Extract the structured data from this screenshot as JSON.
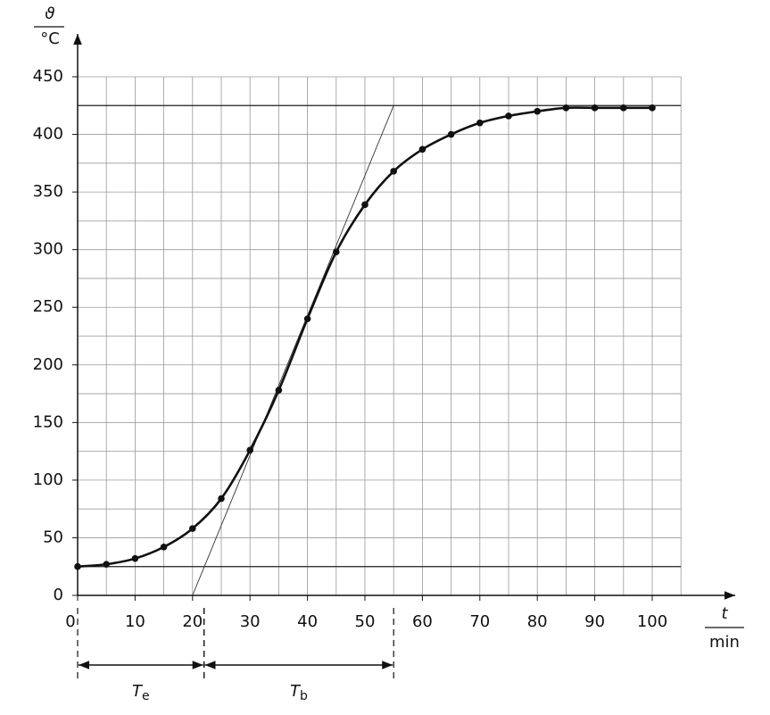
{
  "chart_data": {
    "type": "line",
    "y_label": {
      "symbol": "ϑ",
      "unit": "°C"
    },
    "x_label": {
      "symbol": "t",
      "unit": "min"
    },
    "x": [
      0,
      5,
      10,
      15,
      20,
      25,
      30,
      35,
      40,
      45,
      50,
      55,
      60,
      65,
      70,
      75,
      80,
      85,
      90,
      95,
      100
    ],
    "series": [
      {
        "color": "#111111",
        "values": [
          25,
          27,
          32,
          42,
          58,
          84,
          126,
          178,
          240,
          298,
          339,
          368,
          387,
          400,
          410,
          416,
          420,
          423,
          423,
          423,
          423
        ]
      }
    ],
    "xlim": [
      0,
      105
    ],
    "ylim": [
      0,
      450
    ],
    "xticks": [
      0,
      10,
      20,
      30,
      40,
      50,
      60,
      70,
      80,
      90,
      100
    ],
    "yticks": [
      0,
      50,
      100,
      150,
      200,
      250,
      300,
      350,
      400,
      450
    ],
    "grid": true,
    "hlines": [
      25,
      425
    ],
    "tangent": {
      "x": [
        20,
        55
      ],
      "y": [
        0,
        425
      ]
    },
    "annotations": [
      {
        "symbol": "T",
        "subscript": "e",
        "from": 0,
        "to": 22
      },
      {
        "symbol": "T",
        "subscript": "b",
        "from": 22,
        "to": 55
      }
    ]
  }
}
